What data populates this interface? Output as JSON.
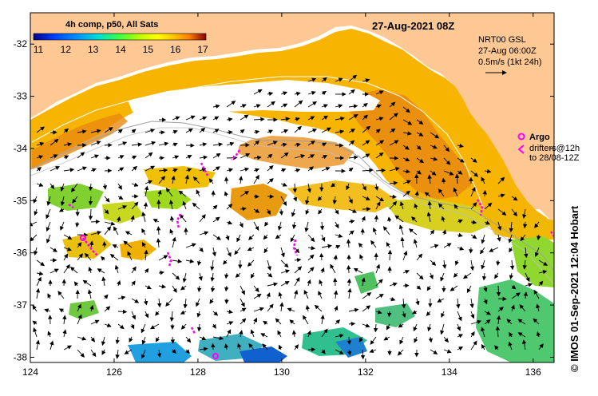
{
  "header": {
    "title": "27-Aug-2021 08Z",
    "colorbar_title": "4h comp, p50, All Sats"
  },
  "colorbar": {
    "labels": [
      "11",
      "12",
      "13",
      "14",
      "15",
      "16",
      "17"
    ],
    "colors": [
      "#00008b",
      "#0000ff",
      "#0080ff",
      "#00d4ff",
      "#00ff80",
      "#80ff00",
      "#ffff00",
      "#ffc000",
      "#ff8000",
      "#d04000",
      "#8b0000"
    ]
  },
  "current_legend": {
    "line1": "NRT00 GSL",
    "line2": "27-Aug 06:00Z",
    "line3": "0.5m/s (1kt 24h)"
  },
  "drifter_legend": {
    "argo_label": "Argo",
    "line2": "drifters@12h",
    "line3": "to 28/08-12Z"
  },
  "axes": {
    "lon_labels": [
      "124",
      "126",
      "128",
      "130",
      "132",
      "134",
      "136"
    ],
    "lat_labels": [
      "-32",
      "-33",
      "-34",
      "-35",
      "-36",
      "-37",
      "-38"
    ],
    "lon_range": [
      124,
      136.5
    ],
    "lat_range": [
      -38.1,
      -31.4
    ]
  },
  "credit": "© IMOS 01-Sep-2021 12:04 Hobart",
  "colors": {
    "land": "#fdc894",
    "sea_blank": "#ffffff",
    "warm": "#f5b000",
    "orange": "#e88a10",
    "argo": "#ff00ff"
  }
}
